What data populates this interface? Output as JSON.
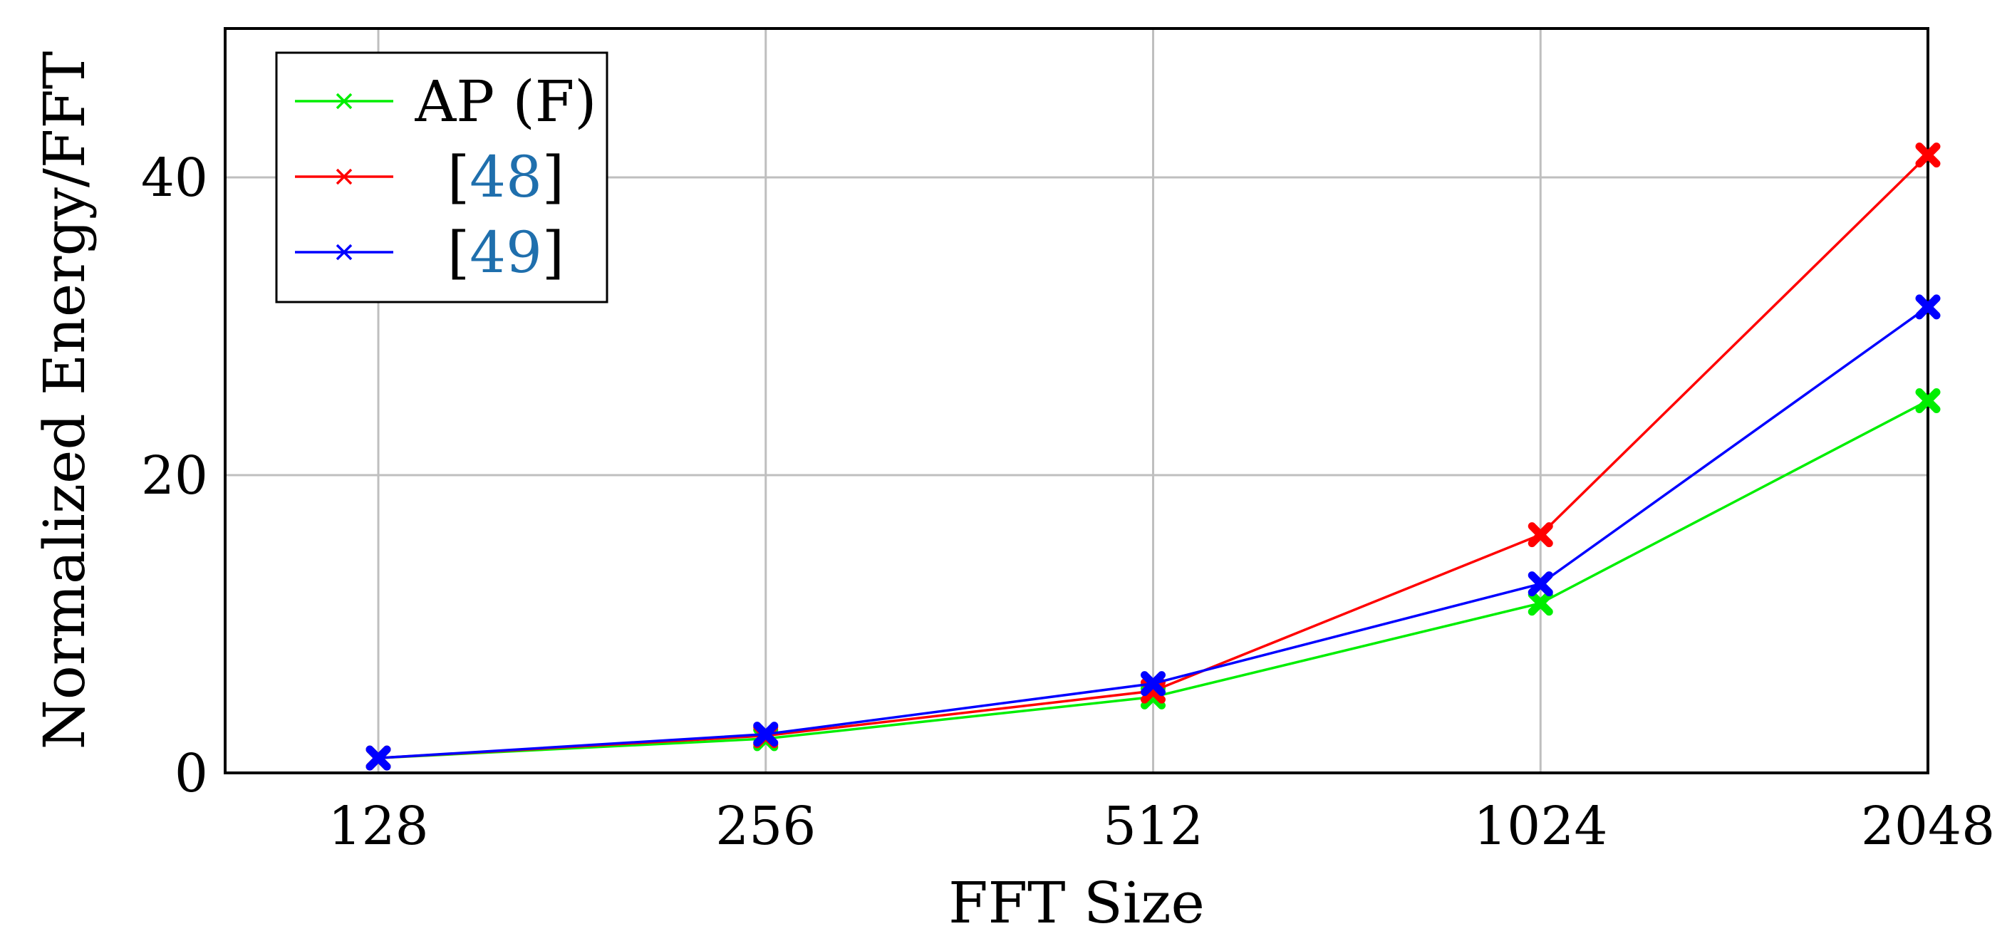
{
  "chart_data": {
    "type": "line",
    "xlabel": "FFT Size",
    "ylabel": "Normalized Energy/FFT",
    "categories": [
      "128",
      "256",
      "512",
      "1024",
      "2048"
    ],
    "ylim": [
      0,
      50
    ],
    "yticks": [
      0,
      20,
      40
    ],
    "grid": true,
    "legend_position": "top-left",
    "series": [
      {
        "name": "AP (F)",
        "ref": "",
        "color": "#00ee00",
        "marker": "x",
        "values": [
          1,
          2.3,
          5.1,
          11.4,
          25.0
        ]
      },
      {
        "name": "[48]",
        "ref": "48",
        "color": "#ff0000",
        "marker": "x",
        "values": [
          1,
          2.5,
          5.5,
          16.0,
          41.5
        ]
      },
      {
        "name": "[49]",
        "ref": "49",
        "color": "#0000ff",
        "marker": "x",
        "values": [
          1,
          2.6,
          6.0,
          12.7,
          31.3
        ]
      }
    ],
    "citation_color": "#1f6fad"
  }
}
